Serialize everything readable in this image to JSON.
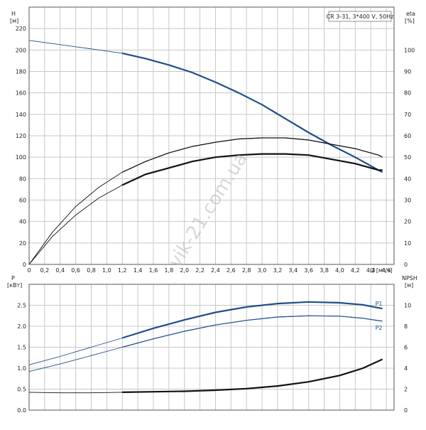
{
  "chart_data": [
    {
      "type": "line",
      "title": "CR 3-31, 3*400 V, 50Hz",
      "xlabel": "Q [м³/ч]",
      "ylabel": "H\n[м]",
      "ylabel_right": "eta\n[%]",
      "xlim": [
        0,
        4.7
      ],
      "ylim": [
        0,
        240
      ],
      "ylim_right": [
        0,
        120
      ],
      "x_ticks": [
        "0",
        "0,2",
        "0,4",
        "0,6",
        "0,8",
        "1,0",
        "1,2",
        "1,4",
        "1,6",
        "1,8",
        "2,0",
        "2,2",
        "2,4",
        "2,6",
        "2,8",
        "3,0",
        "3,2",
        "3,4",
        "3,6",
        "3,8",
        "4,0",
        "4,2",
        "4,4",
        "4,6"
      ],
      "y_ticks": [
        "0",
        "20",
        "40",
        "60",
        "80",
        "100",
        "120",
        "140",
        "160",
        "180",
        "200",
        "220"
      ],
      "y_ticks_right": [
        "0",
        "10",
        "20",
        "30",
        "40",
        "50",
        "60",
        "70",
        "80",
        "90",
        "100"
      ],
      "grid": true,
      "series": [
        {
          "axis": "left",
          "color": "#1f4e8c",
          "x": [
            0,
            0.3,
            0.6,
            0.9,
            1.2,
            1.5,
            1.8,
            2.1,
            2.4,
            2.7,
            3.0,
            3.3,
            3.6,
            3.9,
            4.2,
            4.5,
            4.55
          ],
          "values": [
            209,
            206,
            203,
            200,
            197,
            192,
            186,
            179,
            170,
            160,
            149,
            136,
            123,
            111,
            100,
            88,
            86
          ]
        },
        {
          "axis": "right",
          "color": "#111111",
          "x": [
            0,
            0.3,
            0.6,
            0.9,
            1.2,
            1.5,
            1.8,
            2.1,
            2.4,
            2.7,
            3.0,
            3.3,
            3.6,
            3.9,
            4.2,
            4.5,
            4.55
          ],
          "values": [
            0,
            15,
            27,
            36,
            43,
            48,
            52,
            55,
            57,
            58.5,
            59,
            59,
            58,
            56,
            54,
            51,
            50
          ]
        },
        {
          "axis": "right",
          "color": "#111111",
          "x": [
            0,
            0.3,
            0.6,
            0.9,
            1.2,
            1.5,
            1.8,
            2.1,
            2.4,
            2.7,
            3.0,
            3.3,
            3.6,
            3.9,
            4.2,
            4.5,
            4.55
          ],
          "values": [
            0,
            13,
            23,
            31,
            37,
            42,
            45,
            48,
            50,
            51,
            51.5,
            51.5,
            51,
            49,
            47,
            44,
            44
          ]
        }
      ]
    },
    {
      "type": "line",
      "xlabel": "",
      "ylabel": "P\n[кВт]",
      "ylabel_right": "NPSH\n[м]",
      "xlim": [
        0,
        4.7
      ],
      "ylim": [
        0,
        3.0
      ],
      "ylim_right": [
        0,
        12
      ],
      "y_ticks": [
        "0.0",
        "0.5",
        "1.0",
        "1.5",
        "2.0",
        "2.5"
      ],
      "y_ticks_right": [
        "0",
        "2",
        "4",
        "6",
        "8",
        "10"
      ],
      "grid": true,
      "series": [
        {
          "name": "P1",
          "axis": "left",
          "color": "#1f4e8c",
          "x": [
            0,
            0.4,
            0.8,
            1.2,
            1.6,
            2.0,
            2.4,
            2.8,
            3.2,
            3.6,
            4.0,
            4.3,
            4.55
          ],
          "values": [
            1.08,
            1.28,
            1.5,
            1.72,
            1.95,
            2.15,
            2.33,
            2.46,
            2.54,
            2.58,
            2.56,
            2.51,
            2.42
          ]
        },
        {
          "name": "P2",
          "axis": "left",
          "color": "#1f4e8c",
          "x": [
            0,
            0.4,
            0.8,
            1.2,
            1.6,
            2.0,
            2.4,
            2.8,
            3.2,
            3.6,
            4.0,
            4.3,
            4.55
          ],
          "values": [
            0.92,
            1.1,
            1.3,
            1.5,
            1.7,
            1.88,
            2.03,
            2.14,
            2.22,
            2.25,
            2.24,
            2.19,
            2.12
          ]
        },
        {
          "axis": "right",
          "color": "#111111",
          "x": [
            0,
            0.4,
            0.8,
            1.2,
            1.6,
            2.0,
            2.4,
            2.8,
            3.2,
            3.6,
            4.0,
            4.3,
            4.55
          ],
          "values": [
            1.7,
            1.65,
            1.65,
            1.7,
            1.75,
            1.8,
            1.9,
            2.05,
            2.3,
            2.7,
            3.3,
            4.0,
            4.85
          ]
        }
      ]
    }
  ],
  "watermark": "vik-21.com.ua"
}
